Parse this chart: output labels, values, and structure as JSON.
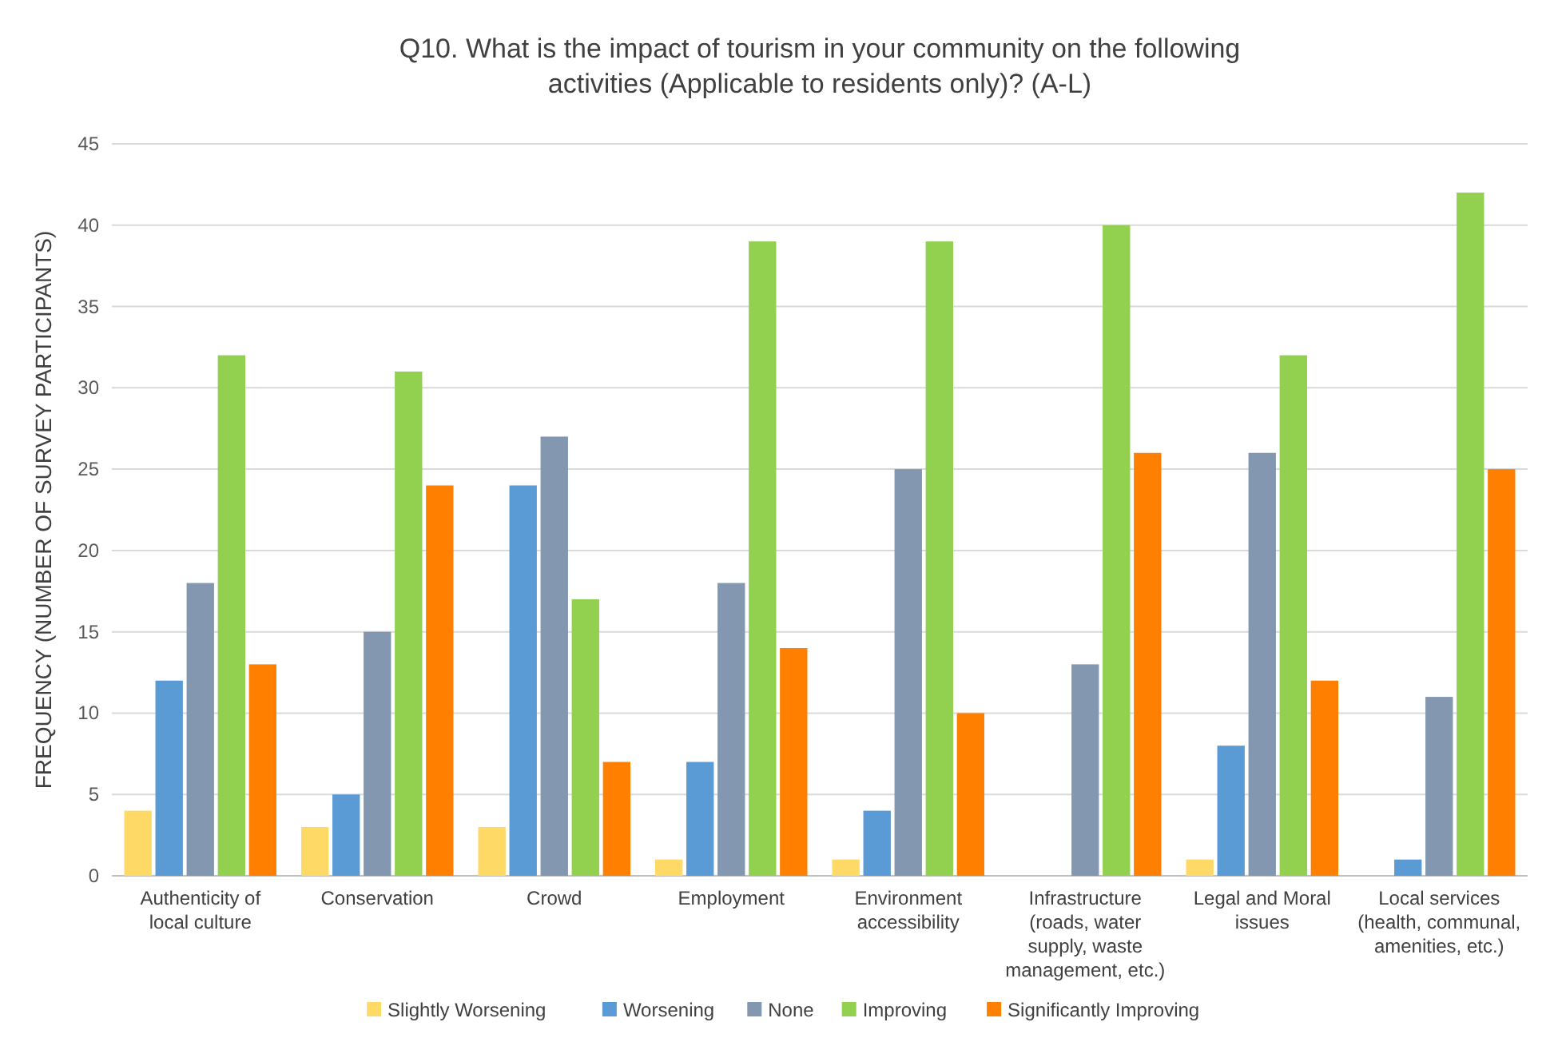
{
  "chart_data": {
    "type": "bar",
    "title": "Q10. What is the impact of tourism in your community on the following activities (Applicable to residents only)? (A-L)",
    "ylabel": "FREQUENCY (NUMBER OF SURVEY PARTICIPANTS)",
    "categories": [
      "Authenticity of local culture",
      "Conservation",
      "Crowd",
      "Employment",
      "Environment accessibility",
      "Infrastructure (roads, water supply, waste management, etc.)",
      "Legal and Moral issues",
      "Local services (health, communal, amenities, etc.)"
    ],
    "series": [
      {
        "name": "Slightly Worsening",
        "color": "#ffd966",
        "values": [
          4,
          3,
          3,
          1,
          1,
          0,
          1,
          0
        ]
      },
      {
        "name": "Worsening",
        "color": "#5b9bd5",
        "values": [
          12,
          5,
          24,
          7,
          4,
          0,
          8,
          1
        ]
      },
      {
        "name": "None",
        "color": "#8497b0",
        "values": [
          18,
          15,
          27,
          18,
          25,
          13,
          26,
          11
        ]
      },
      {
        "name": "Improving",
        "color": "#92d050",
        "values": [
          32,
          31,
          17,
          39,
          39,
          40,
          32,
          42
        ]
      },
      {
        "name": "Significantly Improving",
        "color": "#ff7f00",
        "values": [
          13,
          24,
          7,
          14,
          10,
          26,
          12,
          25
        ]
      }
    ],
    "ylim": [
      0,
      45
    ],
    "yticks": [
      0,
      5,
      10,
      15,
      20,
      25,
      30,
      35,
      40,
      45
    ],
    "grid": "y",
    "legend": "bottom"
  }
}
